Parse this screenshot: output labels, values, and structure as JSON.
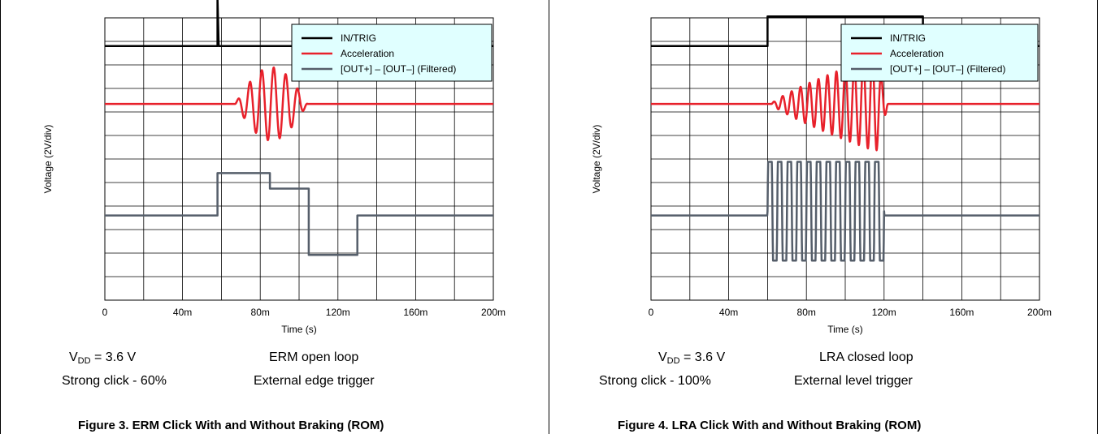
{
  "figures": [
    {
      "vdd_prefix": "V",
      "vdd_sub": "DD",
      "vdd_value": " = 3.6 V",
      "mode": "ERM open loop",
      "click": "Strong click - 60%",
      "trigger": "External edge trigger",
      "caption": "Figure 3. ERM Click With and Without Braking (ROM)"
    },
    {
      "vdd_prefix": "V",
      "vdd_sub": "DD",
      "vdd_value": " = 3.6 V",
      "mode": "LRA closed loop",
      "click": "Strong click - 100%",
      "trigger": "External level trigger",
      "caption": "Figure 4. LRA Click With and Without Braking (ROM)"
    }
  ],
  "chart_data": [
    {
      "type": "line",
      "xlabel": "Time (s)",
      "ylabel": "Voltage (2V/div)",
      "xlim": [
        0,
        0.2
      ],
      "ylim": [
        -5,
        5
      ],
      "grid": true,
      "legend_position": "top-right",
      "x_ticks": [
        "0",
        "40m",
        "80m",
        "120m",
        "160m",
        "200m"
      ],
      "series": [
        {
          "name": "IN/TRIG",
          "color": "#000000",
          "kind": "pulse",
          "baseline": 4.0,
          "pulse_at": 0.058,
          "pulse_height": 1.7
        },
        {
          "name": "Acceleration",
          "color": "#e8212b",
          "kind": "burst",
          "baseline": 1.95,
          "burst_start": 0.067,
          "burst_end": 0.11,
          "cycles": 7,
          "amplitude": 1.3
        },
        {
          "name": "[OUT+] – [OUT–] (Filtered)",
          "color": "#555e6a",
          "kind": "steps",
          "x": [
            0,
            0.058,
            0.058,
            0.085,
            0.085,
            0.105,
            0.105,
            0.13,
            0.13,
            0.2
          ],
          "y": [
            -2.0,
            -2.0,
            -0.5,
            -0.5,
            -1.05,
            -1.05,
            -3.4,
            -3.4,
            -2.0,
            -2.0
          ]
        }
      ]
    },
    {
      "type": "line",
      "xlabel": "Time (s)",
      "ylabel": "Voltage (2V/div)",
      "xlim": [
        0,
        0.2
      ],
      "ylim": [
        -5,
        5
      ],
      "grid": true,
      "legend_position": "top-right",
      "x_ticks": [
        "0",
        "40m",
        "80m",
        "120m",
        "160m",
        "200m"
      ],
      "series": [
        {
          "name": "IN/TRIG",
          "color": "#000000",
          "kind": "steps",
          "x": [
            0,
            0.06,
            0.06,
            0.14,
            0.14,
            0.2
          ],
          "y": [
            4.0,
            4.0,
            5.05,
            5.05,
            4.0,
            4.0
          ]
        },
        {
          "name": "Acceleration",
          "color": "#e8212b",
          "kind": "burst",
          "baseline": 1.95,
          "burst_start": 0.062,
          "burst_end": 0.122,
          "cycles": 13,
          "amplitude": 1.75,
          "envelope": "ramp"
        },
        {
          "name": "[OUT+] – [OUT–] (Filtered)",
          "color": "#555e6a",
          "kind": "square-burst",
          "baseline": -2.0,
          "burst_start": 0.06,
          "burst_end": 0.12,
          "cycles": 12,
          "high": -0.1,
          "low": -3.6
        }
      ]
    }
  ]
}
